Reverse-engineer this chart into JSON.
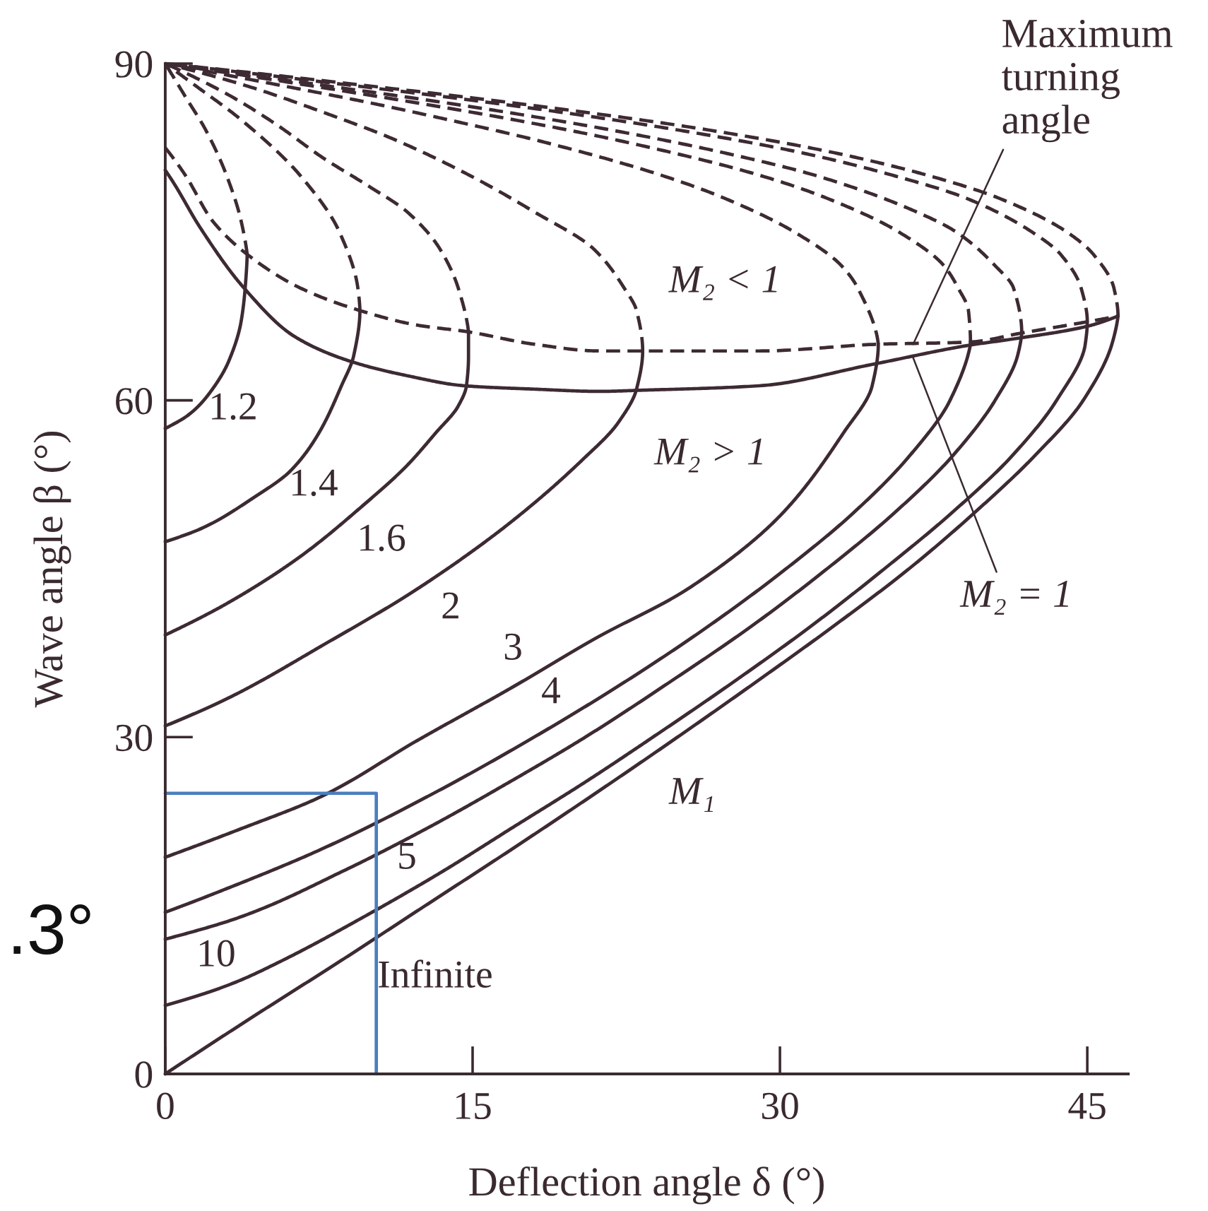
{
  "chart_data": {
    "type": "line",
    "xlabel": "Deflection angle δ (°)",
    "ylabel": "Wave angle β (°)",
    "xlim": [
      0,
      47
    ],
    "ylim": [
      0,
      90
    ],
    "xticks": [
      0,
      15,
      30,
      45
    ],
    "yticks": [
      0,
      30,
      60,
      90
    ],
    "series": [
      {
        "color": "#3d2a33",
        "line_style": "solid",
        "x": [
          0,
          1.2,
          2.1,
          3.1,
          3.7,
          3.9,
          4.0
        ],
        "values": [
          57.5,
          58.8,
          60.5,
          63.5,
          67.0,
          70.0,
          73.0
        ]
      },
      {
        "color": "#3d2a33",
        "line_style": "dashed",
        "x": [
          4.0,
          3.7,
          3.0,
          2.0,
          1.0,
          0
        ],
        "values": [
          73.0,
          76.0,
          80.0,
          84.0,
          87.0,
          90.0
        ]
      },
      {
        "color": "#3d2a33",
        "line_style": "solid",
        "x": [
          0,
          1.9,
          4.2,
          6.1,
          7.5,
          8.6,
          9.2,
          9.5
        ],
        "values": [
          47.4,
          48.7,
          51.2,
          53.7,
          57.1,
          61.3,
          64.0,
          68.0
        ]
      },
      {
        "color": "#3d2a33",
        "line_style": "dashed",
        "x": [
          9.5,
          9.4,
          8.5,
          6.6,
          3.7,
          1.5,
          0
        ],
        "values": [
          68.0,
          70.0,
          75.0,
          80.0,
          85.0,
          88.0,
          90.0
        ]
      },
      {
        "color": "#3d2a33",
        "line_style": "solid",
        "x": [
          0,
          3.1,
          6.6,
          9.5,
          11.8,
          13.2,
          14.3,
          14.7,
          14.8,
          14.8
        ],
        "values": [
          39.1,
          42.0,
          46.1,
          50.4,
          54.2,
          57.1,
          59.5,
          61.3,
          63.9,
          66.1
        ]
      },
      {
        "color": "#3d2a33",
        "line_style": "dashed",
        "x": [
          14.8,
          14.3,
          13.4,
          11.8,
          10.0,
          7.7,
          5.4,
          3.1,
          0
        ],
        "values": [
          66.1,
          70.0,
          73.5,
          76.8,
          79.0,
          81.6,
          84.6,
          87.2,
          90.0
        ]
      },
      {
        "color": "#3d2a33",
        "line_style": "solid",
        "x": [
          0,
          3.1,
          7.7,
          12.3,
          16.9,
          20.3,
          22.1,
          23.0,
          23.3
        ],
        "values": [
          31.0,
          33.5,
          38.2,
          43.2,
          49.2,
          54.6,
          58.0,
          61.0,
          64.4
        ]
      },
      {
        "color": "#3d2a33",
        "line_style": "dashed",
        "x": [
          23.3,
          23.0,
          22.4,
          20.9,
          18.0,
          14.9,
          11.1,
          7.8,
          4.0,
          0
        ],
        "values": [
          64.4,
          68.0,
          70.0,
          73.5,
          76.8,
          80.0,
          83.3,
          85.6,
          88.0,
          90.0
        ]
      },
      {
        "color": "#3d2a33",
        "line_style": "solid",
        "x": [
          0,
          3.5,
          7.6,
          12.3,
          16.9,
          21.0,
          25.5,
          30.1,
          33.1,
          34.5,
          34.8
        ],
        "values": [
          19.3,
          21.7,
          24.7,
          29.7,
          34.4,
          38.8,
          43.2,
          49.9,
          57.1,
          61.3,
          65.0
        ]
      },
      {
        "color": "#3d2a33",
        "line_style": "dashed",
        "x": [
          34.8,
          33.8,
          33.0,
          30.7,
          27.3,
          24.3,
          18.5,
          13.8,
          10.0,
          5.8,
          0
        ],
        "values": [
          65.0,
          70.0,
          72.0,
          75.0,
          78.0,
          80.0,
          83.0,
          85.0,
          86.5,
          88.0,
          90.0
        ]
      },
      {
        "color": "#3d2a33",
        "line_style": "solid",
        "x": [
          0,
          2.3,
          7.6,
          13.1,
          18.0,
          22.5,
          26.6,
          30.3,
          33.6,
          36.3,
          38.3,
          39.3
        ],
        "values": [
          14.4,
          16.0,
          20.0,
          25.0,
          30.0,
          35.0,
          40.0,
          45.0,
          50.0,
          55.0,
          60.0,
          65.0
        ]
      },
      {
        "color": "#3d2a33",
        "line_style": "dashed",
        "x": [
          39.3,
          39.2,
          38.7,
          38.0,
          35.8,
          32.3,
          29.1,
          22.5,
          17.0,
          7.2,
          0
        ],
        "values": [
          65.0,
          68.0,
          70.0,
          72.0,
          75.0,
          78.0,
          80.0,
          83.0,
          85.0,
          88.0,
          90.0
        ]
      },
      {
        "color": "#3d2a33",
        "line_style": "solid",
        "x": [
          0,
          3.7,
          8.6,
          12.9,
          16.8,
          20.5,
          24.7,
          28.7,
          32.3,
          35.6,
          38.4,
          40.5,
          41.6,
          41.8
        ],
        "values": [
          12.0,
          14.0,
          18.0,
          22.0,
          26.0,
          30.0,
          35.0,
          40.0,
          45.0,
          50.0,
          55.0,
          60.0,
          64.0,
          66.0
        ]
      },
      {
        "color": "#3d2a33",
        "line_style": "dashed",
        "x": [
          41.8,
          41.4,
          40.5,
          38.6,
          36.4,
          31.8,
          27.4,
          22.0,
          15.5,
          6.0,
          0
        ],
        "values": [
          66.0,
          70.0,
          72.0,
          75.0,
          77.0,
          80.0,
          82.0,
          84.0,
          86.0,
          88.5,
          90.0
        ]
      },
      {
        "color": "#3d2a33",
        "line_style": "solid",
        "x": [
          0,
          3.2,
          5.6,
          9.7,
          13.5,
          17.0,
          20.5,
          23.8,
          27.8,
          31.6,
          35.1,
          38.4,
          41.3,
          43.5,
          44.9,
          45.0
        ],
        "values": [
          6.1,
          8.0,
          10.0,
          14.0,
          18.0,
          22.0,
          26.0,
          30.0,
          35.0,
          40.0,
          45.0,
          50.0,
          55.0,
          60.0,
          65.0,
          67.0
        ]
      },
      {
        "color": "#3d2a33",
        "line_style": "dashed",
        "x": [
          45.0,
          44.7,
          43.7,
          42.3,
          39.1,
          35.6,
          31.2,
          25.3,
          18.0,
          7.1,
          0
        ],
        "values": [
          67.0,
          70.0,
          73.0,
          75.0,
          78.0,
          80.0,
          82.0,
          84.0,
          86.0,
          88.5,
          90.0
        ]
      },
      {
        "color": "#3d2a33",
        "line_style": "solid",
        "x": [
          0,
          4.2,
          8.5,
          12.7,
          16.9,
          21.0,
          25.0,
          28.9,
          32.7,
          36.3,
          39.5,
          42.4,
          44.8,
          46.2,
          46.5
        ],
        "values": [
          0,
          5,
          10,
          15,
          20,
          25,
          30,
          35,
          40,
          45,
          50,
          55,
          60,
          65,
          67.5
        ]
      },
      {
        "color": "#3d2a33",
        "line_style": "dashed",
        "x": [
          46.5,
          46.3,
          45.3,
          44.0,
          40.7,
          37.3,
          32.8,
          26.8,
          19.1,
          7.6,
          0
        ],
        "values": [
          67.5,
          70.0,
          73.0,
          75.0,
          78.0,
          80.0,
          82.0,
          84.0,
          86.0,
          88.5,
          90.0
        ]
      },
      {
        "color": "#3d2a33",
        "line_style": "solid",
        "x": [
          0,
          0.4,
          1.7,
          3.8,
          6.3,
          9.0,
          11.8,
          14.6,
          18.0,
          21.2,
          23.2,
          29.0,
          34.5,
          39.2,
          41.5,
          45.0,
          46.5
        ],
        "values": [
          80.5,
          79.4,
          75.4,
          70.1,
          65.7,
          63.5,
          62.2,
          61.3,
          61.0,
          60.8,
          60.9,
          61.3,
          63.2,
          64.9,
          65.5,
          66.6,
          67.5
        ]
      },
      {
        "color": "#3d2a33",
        "line_style": "dashed",
        "x": [
          0,
          1.0,
          2.3,
          4.0,
          6.6,
          9.5,
          12.3,
          14.8,
          18.0,
          21.2,
          23.3,
          29.0,
          34.8,
          39.3,
          41.8,
          45.0,
          46.5
        ],
        "values": [
          82.5,
          80.0,
          76.0,
          73.0,
          70.0,
          68.0,
          66.7,
          66.1,
          65.0,
          64.4,
          64.4,
          64.4,
          65.0,
          65.2,
          66.0,
          67.0,
          67.5
        ]
      },
      {
        "color": "#4a7ebf",
        "line_style": "solid",
        "x": [
          0,
          10.3,
          10.3
        ],
        "values": [
          25.0,
          25.0,
          0
        ]
      }
    ],
    "annotations": [
      "1.2",
      "1.4",
      "1.6",
      "2",
      "3",
      "4",
      "5",
      "10",
      "Infinite",
      {
        "text": "Maximum turning angle",
        "x": 36.5,
        "y": 65.0
      },
      {
        "text": "M₂ = 1",
        "x": 36.5,
        "y": 63.8
      },
      "M₂ < 1",
      "M₂ > 1",
      "M₁",
      ".3°"
    ]
  }
}
